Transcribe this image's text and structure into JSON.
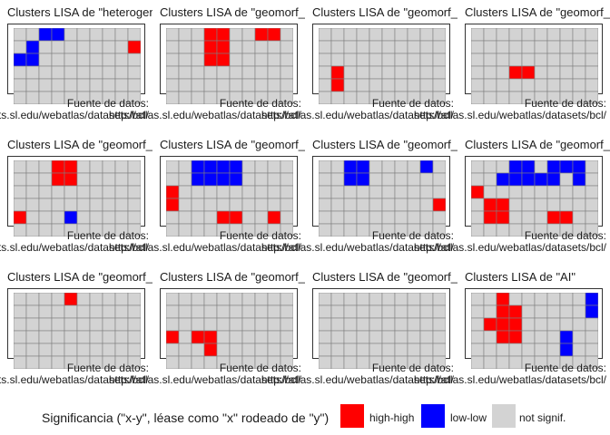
{
  "legend": {
    "title": "Significancia (\"x-y\", léase como \"x\" rodeado de \"y\")",
    "items": [
      {
        "label": "high-high",
        "color": "#ff0000"
      },
      {
        "label": "low-low",
        "color": "#0000ff"
      },
      {
        "label": "not signif.",
        "color": "#d3d3d3"
      }
    ]
  },
  "colors": {
    "H": "#ff0000",
    "L": "#0000ff",
    "N": "#d3d3d3",
    "grid": "#7f7f7f"
  },
  "chart_data": {
    "type": "heatmap",
    "grid": {
      "rows": 6,
      "cols": 10
    },
    "panels": [
      {
        "title": "Clusters LISA de \"heterogen",
        "caption": [
          "Fuente de datos:",
          "ts.sl.edu/webatlas/datasets/bcl/"
        ],
        "cells": [
          "..LL......",
          ".L.......H",
          "LL........",
          "..........",
          "..........",
          ".........."
        ]
      },
      {
        "title": "Clusters LISA de \"geomorf_",
        "caption": [
          "Fuente de datos:",
          "http://atlas.sl.edu/webatlas/datasets/bcl/"
        ],
        "cells": [
          "...HH..HH.",
          "...HH.....",
          "...HH.....",
          "..........",
          "..........",
          ".........."
        ]
      },
      {
        "title": "Clusters LISA de \"geomorf_",
        "caption": [
          "Fuente de datos:",
          "http://atlas.sl.edu/webatlas/datasets/bcl/"
        ],
        "cells": [
          "..........",
          "..........",
          "..........",
          ".H........",
          ".H........",
          ".........."
        ]
      },
      {
        "title": "Clusters LISA de \"geomorf_",
        "caption": [
          "Fuente de datos:",
          "http://atlas.sl.edu/webatlas/datasets/bcl/"
        ],
        "cells": [
          "..........",
          "..........",
          "..........",
          "...HH.....",
          "..........",
          ".........."
        ]
      },
      {
        "title": "Clusters LISA de \"geomorf_",
        "caption": [
          "Fuente de datos:",
          "ts.sl.edu/webatlas/datasets/bcl/"
        ],
        "cells": [
          "...HH.....",
          "...HH.....",
          "..........",
          "..........",
          "H...L.....",
          ".........."
        ]
      },
      {
        "title": "Clusters LISA de \"geomorf_",
        "caption": [
          "Fuente de datos:",
          "http://atlas.sl.edu/webatlas/datasets/bcl/"
        ],
        "cells": [
          "..LLLL....",
          "..LLLL....",
          "H.........",
          "H.........",
          "....HH..H.",
          ".........."
        ]
      },
      {
        "title": "Clusters LISA de \"geomorf_",
        "caption": [
          "Fuente de datos:",
          "http://atlas.sl.edu/webatlas/datasets/bcl/"
        ],
        "cells": [
          "..LL....L.",
          "..LL......",
          "..........",
          ".........H",
          "..........",
          ".........."
        ]
      },
      {
        "title": "Clusters LISA de \"geomorf_",
        "caption": [
          "Fuente de datos:",
          "http://atlas.sl.edu/webatlas/datasets/bcl/"
        ],
        "cells": [
          "...LL.LLL.",
          "..LLLLL.L.",
          "H.........",
          ".HH.......",
          ".HH...HH..",
          ".........."
        ]
      },
      {
        "title": "Clusters LISA de \"geomorf_",
        "caption": [
          "Fuente de datos:",
          "ts.sl.edu/webatlas/datasets/bcl/"
        ],
        "cells": [
          "....H.....",
          "..........",
          "..........",
          "..........",
          "..........",
          ".........."
        ]
      },
      {
        "title": "Clusters LISA de \"geomorf_",
        "caption": [
          "Fuente de datos:",
          "http://atlas.sl.edu/webatlas/datasets/bcl/"
        ],
        "cells": [
          "..........",
          "..........",
          "..........",
          "H.HH......",
          "...H......",
          ".........."
        ]
      },
      {
        "title": "Clusters LISA de \"geomorf_",
        "caption": [
          "Fuente de datos:",
          "http://atlas.sl.edu/webatlas/datasets/bcl/"
        ],
        "cells": [
          "..........",
          "..........",
          "..........",
          "..........",
          "..........",
          ".........."
        ]
      },
      {
        "title": "Clusters LISA de \"AI\"",
        "caption": [
          "Fuente de datos:",
          "http://atlas.sl.edu/webatlas/datasets/bcl/"
        ],
        "cells": [
          "..H......L",
          "..HH.....L",
          ".HHH......",
          "..HH...L..",
          ".......L..",
          ".........."
        ]
      }
    ]
  }
}
